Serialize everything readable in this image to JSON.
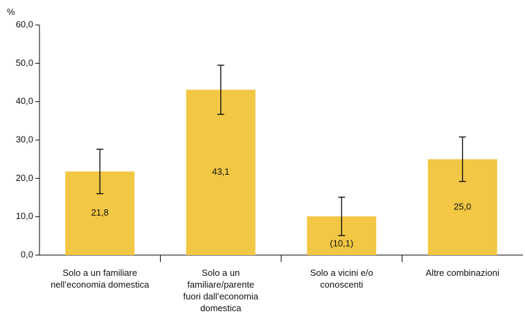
{
  "chart_data": {
    "type": "bar",
    "y_unit_label": "%",
    "categories": [
      "Solo a un familiare nell’economia domestica",
      "Solo a un familiare/parente fuori dall’economia domestica",
      "Solo a vicini e/o conoscenti",
      "Altre combinazioni"
    ],
    "values": [
      21.8,
      43.1,
      10.1,
      25.0
    ],
    "value_labels": [
      "21,8",
      "43,1",
      "(10,1)",
      "25,0"
    ],
    "errors": [
      5.8,
      6.4,
      5.0,
      5.8
    ],
    "color": "#f2c744",
    "ylim": [
      0,
      60
    ],
    "yticks": [
      {
        "value": 0,
        "label": "0,0"
      },
      {
        "value": 10,
        "label": "10,0"
      },
      {
        "value": 20,
        "label": "20,0"
      },
      {
        "value": 30,
        "label": "30,0"
      },
      {
        "value": 40,
        "label": "40,0"
      },
      {
        "value": 50,
        "label": "50,0"
      },
      {
        "value": 60,
        "label": "60,0"
      }
    ],
    "grid": false
  }
}
